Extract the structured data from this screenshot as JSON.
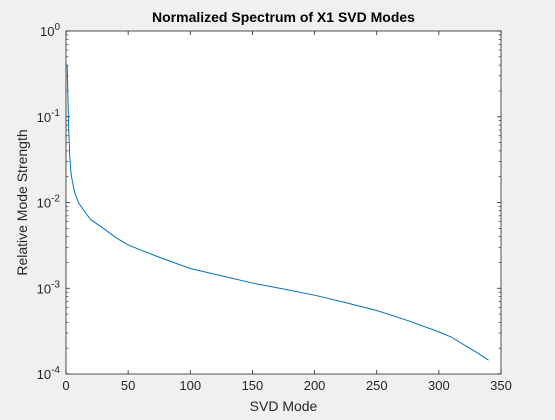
{
  "chart_data": {
    "type": "line",
    "title": "Normalized Spectrum of X1 SVD Modes",
    "xlabel": "SVD Mode",
    "ylabel": "Relative Mode Strength",
    "xlim": [
      0,
      350
    ],
    "ylim": [
      0.0001,
      1
    ],
    "yscale": "log",
    "grid": false,
    "xticks": [
      0,
      50,
      100,
      150,
      200,
      250,
      300,
      350
    ],
    "xtick_labels": [
      "0",
      "50",
      "100",
      "150",
      "200",
      "250",
      "300",
      "350"
    ],
    "yticks": [
      0.0001,
      0.001,
      0.01,
      0.1,
      1
    ],
    "ytick_labels": [
      {
        "base": "10",
        "exp": "-4"
      },
      {
        "base": "10",
        "exp": "-3"
      },
      {
        "base": "10",
        "exp": "-2"
      },
      {
        "base": "10",
        "exp": "-1"
      },
      {
        "base": "10",
        "exp": "0"
      }
    ],
    "series": [
      {
        "color": "#0072bd",
        "x": [
          1,
          2,
          3,
          4,
          5,
          7,
          10,
          15,
          20,
          30,
          40,
          50,
          60,
          75,
          100,
          125,
          150,
          175,
          200,
          225,
          250,
          275,
          300,
          310,
          320,
          330,
          340
        ],
        "y": [
          0.4,
          0.085,
          0.035,
          0.022,
          0.018,
          0.013,
          0.01,
          0.0078,
          0.0063,
          0.005,
          0.0039,
          0.0032,
          0.0028,
          0.0023,
          0.0017,
          0.0014,
          0.00115,
          0.00098,
          0.00083,
          0.00068,
          0.00055,
          0.00042,
          0.00031,
          0.00027,
          0.00022,
          0.00018,
          0.000145
        ]
      }
    ]
  },
  "colors": {
    "figure_background": "#f0f0f0",
    "axes_background": "#ffffff",
    "axes_edge": "#262626",
    "line": "#0072bd"
  }
}
